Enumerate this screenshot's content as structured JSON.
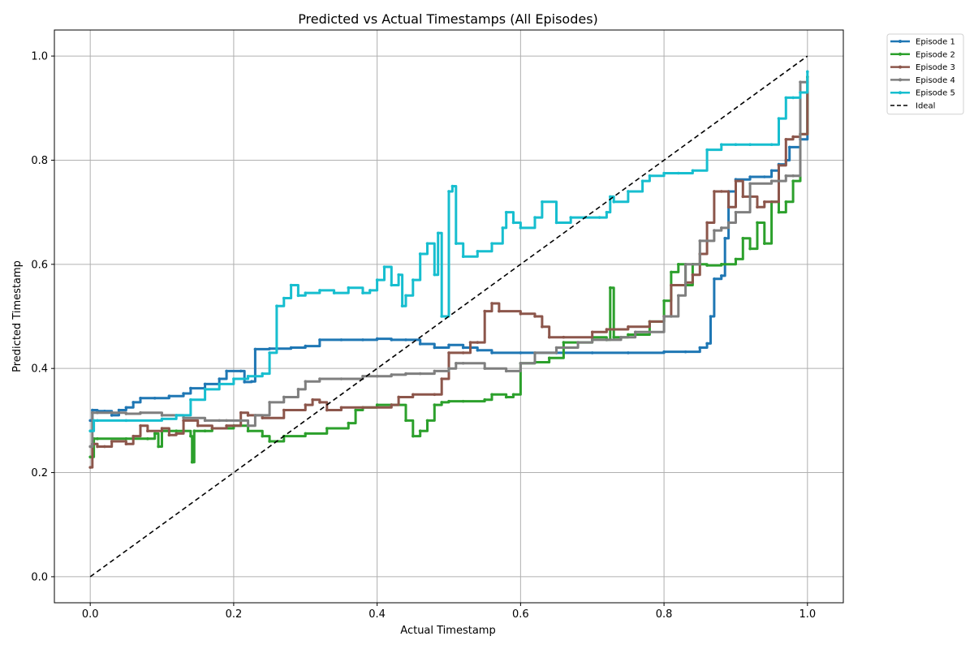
{
  "chart_data": {
    "type": "line",
    "title": "Predicted vs Actual Timestamps (All Episodes)",
    "xlabel": "Actual Timestamp",
    "ylabel": "Predicted Timestamp",
    "xlim": [
      -0.05,
      1.05
    ],
    "ylim": [
      -0.05,
      1.05
    ],
    "xticks": [
      "0.0",
      "0.2",
      "0.4",
      "0.6",
      "0.8",
      "1.0"
    ],
    "yticks": [
      "0.0",
      "0.2",
      "0.4",
      "0.6",
      "0.8",
      "1.0"
    ],
    "grid": true,
    "legend_position": "outside-top-right",
    "series": [
      {
        "name": "Episode 1",
        "color": "#1f77b4",
        "x": [
          0.0,
          0.003,
          0.01,
          0.02,
          0.03,
          0.04,
          0.05,
          0.06,
          0.07,
          0.09,
          0.11,
          0.13,
          0.14,
          0.16,
          0.18,
          0.19,
          0.21,
          0.215,
          0.225,
          0.23,
          0.25,
          0.28,
          0.3,
          0.32,
          0.35,
          0.38,
          0.4,
          0.42,
          0.44,
          0.46,
          0.48,
          0.5,
          0.52,
          0.54,
          0.56,
          0.6,
          0.65,
          0.7,
          0.75,
          0.8,
          0.83,
          0.85,
          0.86,
          0.865,
          0.87,
          0.88,
          0.885,
          0.89,
          0.9,
          0.92,
          0.94,
          0.95,
          0.96,
          0.97,
          0.975,
          0.99,
          1.0
        ],
        "y": [
          0.3,
          0.32,
          0.318,
          0.318,
          0.31,
          0.32,
          0.325,
          0.335,
          0.343,
          0.343,
          0.347,
          0.352,
          0.362,
          0.37,
          0.38,
          0.395,
          0.395,
          0.374,
          0.375,
          0.437,
          0.438,
          0.44,
          0.443,
          0.455,
          0.455,
          0.455,
          0.457,
          0.455,
          0.455,
          0.447,
          0.44,
          0.445,
          0.44,
          0.435,
          0.43,
          0.43,
          0.43,
          0.43,
          0.43,
          0.432,
          0.432,
          0.44,
          0.448,
          0.5,
          0.572,
          0.578,
          0.65,
          0.74,
          0.763,
          0.768,
          0.768,
          0.78,
          0.792,
          0.8,
          0.825,
          0.84,
          0.96
        ]
      },
      {
        "name": "Episode 2",
        "color": "#2ca02c",
        "x": [
          0.0,
          0.005,
          0.01,
          0.05,
          0.08,
          0.09,
          0.095,
          0.1,
          0.12,
          0.14,
          0.142,
          0.145,
          0.16,
          0.17,
          0.2,
          0.22,
          0.24,
          0.25,
          0.27,
          0.3,
          0.33,
          0.36,
          0.37,
          0.38,
          0.4,
          0.42,
          0.44,
          0.45,
          0.46,
          0.47,
          0.48,
          0.49,
          0.5,
          0.52,
          0.55,
          0.56,
          0.58,
          0.59,
          0.6,
          0.62,
          0.64,
          0.66,
          0.7,
          0.72,
          0.725,
          0.73,
          0.75,
          0.78,
          0.8,
          0.81,
          0.82,
          0.83,
          0.84,
          0.85,
          0.86,
          0.88,
          0.9,
          0.91,
          0.92,
          0.93,
          0.94,
          0.95,
          0.96,
          0.97,
          0.98,
          0.99,
          1.0
        ],
        "y": [
          0.23,
          0.265,
          0.265,
          0.265,
          0.265,
          0.275,
          0.25,
          0.28,
          0.28,
          0.27,
          0.22,
          0.28,
          0.28,
          0.285,
          0.29,
          0.28,
          0.27,
          0.26,
          0.27,
          0.275,
          0.285,
          0.295,
          0.32,
          0.325,
          0.33,
          0.33,
          0.3,
          0.27,
          0.28,
          0.3,
          0.33,
          0.335,
          0.337,
          0.337,
          0.34,
          0.35,
          0.345,
          0.35,
          0.41,
          0.412,
          0.42,
          0.45,
          0.46,
          0.455,
          0.555,
          0.46,
          0.465,
          0.49,
          0.53,
          0.585,
          0.6,
          0.56,
          0.6,
          0.6,
          0.598,
          0.6,
          0.61,
          0.65,
          0.63,
          0.68,
          0.64,
          0.72,
          0.7,
          0.72,
          0.76,
          0.85,
          0.96
        ]
      },
      {
        "name": "Episode 3",
        "color": "#8c564b",
        "x": [
          0.0,
          0.003,
          0.01,
          0.02,
          0.03,
          0.05,
          0.06,
          0.07,
          0.08,
          0.1,
          0.11,
          0.12,
          0.13,
          0.15,
          0.17,
          0.19,
          0.21,
          0.22,
          0.24,
          0.27,
          0.3,
          0.31,
          0.32,
          0.33,
          0.35,
          0.38,
          0.42,
          0.43,
          0.45,
          0.48,
          0.49,
          0.5,
          0.52,
          0.53,
          0.54,
          0.55,
          0.56,
          0.57,
          0.6,
          0.62,
          0.63,
          0.64,
          0.66,
          0.7,
          0.72,
          0.75,
          0.78,
          0.8,
          0.81,
          0.83,
          0.84,
          0.85,
          0.86,
          0.87,
          0.88,
          0.89,
          0.9,
          0.91,
          0.93,
          0.94,
          0.96,
          0.97,
          0.98,
          0.99,
          1.0
        ],
        "y": [
          0.21,
          0.255,
          0.25,
          0.25,
          0.26,
          0.255,
          0.27,
          0.29,
          0.28,
          0.285,
          0.272,
          0.275,
          0.3,
          0.29,
          0.285,
          0.29,
          0.315,
          0.31,
          0.305,
          0.32,
          0.33,
          0.34,
          0.335,
          0.32,
          0.325,
          0.325,
          0.33,
          0.345,
          0.35,
          0.35,
          0.38,
          0.43,
          0.43,
          0.45,
          0.45,
          0.51,
          0.525,
          0.51,
          0.505,
          0.5,
          0.48,
          0.46,
          0.46,
          0.47,
          0.475,
          0.48,
          0.49,
          0.5,
          0.56,
          0.565,
          0.58,
          0.62,
          0.68,
          0.74,
          0.74,
          0.71,
          0.76,
          0.73,
          0.71,
          0.72,
          0.79,
          0.84,
          0.845,
          0.85,
          0.93
        ]
      },
      {
        "name": "Episode 4",
        "color": "#7f7f7f",
        "x": [
          0.0,
          0.003,
          0.01,
          0.03,
          0.05,
          0.07,
          0.1,
          0.13,
          0.16,
          0.18,
          0.19,
          0.22,
          0.23,
          0.25,
          0.27,
          0.29,
          0.3,
          0.32,
          0.35,
          0.38,
          0.4,
          0.42,
          0.44,
          0.46,
          0.48,
          0.5,
          0.51,
          0.52,
          0.55,
          0.58,
          0.6,
          0.62,
          0.65,
          0.68,
          0.7,
          0.72,
          0.74,
          0.76,
          0.78,
          0.8,
          0.81,
          0.82,
          0.83,
          0.85,
          0.87,
          0.88,
          0.89,
          0.9,
          0.92,
          0.95,
          0.97,
          0.98,
          0.99,
          1.0
        ],
        "y": [
          0.25,
          0.315,
          0.315,
          0.315,
          0.313,
          0.315,
          0.31,
          0.305,
          0.3,
          0.3,
          0.3,
          0.29,
          0.31,
          0.335,
          0.345,
          0.36,
          0.375,
          0.38,
          0.38,
          0.385,
          0.385,
          0.388,
          0.39,
          0.39,
          0.395,
          0.4,
          0.41,
          0.41,
          0.4,
          0.395,
          0.41,
          0.43,
          0.44,
          0.45,
          0.455,
          0.455,
          0.46,
          0.47,
          0.47,
          0.5,
          0.5,
          0.54,
          0.6,
          0.645,
          0.665,
          0.67,
          0.68,
          0.7,
          0.755,
          0.76,
          0.77,
          0.77,
          0.95,
          0.95
        ]
      },
      {
        "name": "Episode 5",
        "color": "#17becf",
        "x": [
          0.0,
          0.005,
          0.01,
          0.05,
          0.1,
          0.12,
          0.14,
          0.16,
          0.18,
          0.2,
          0.22,
          0.24,
          0.25,
          0.26,
          0.27,
          0.28,
          0.29,
          0.3,
          0.32,
          0.34,
          0.36,
          0.38,
          0.39,
          0.4,
          0.41,
          0.42,
          0.43,
          0.435,
          0.44,
          0.45,
          0.46,
          0.47,
          0.48,
          0.485,
          0.49,
          0.5,
          0.505,
          0.51,
          0.52,
          0.54,
          0.56,
          0.575,
          0.58,
          0.59,
          0.6,
          0.62,
          0.63,
          0.65,
          0.67,
          0.69,
          0.71,
          0.72,
          0.725,
          0.73,
          0.75,
          0.77,
          0.78,
          0.8,
          0.82,
          0.84,
          0.86,
          0.88,
          0.9,
          0.92,
          0.95,
          0.96,
          0.97,
          0.98,
          0.99,
          1.0
        ],
        "y": [
          0.28,
          0.3,
          0.3,
          0.3,
          0.303,
          0.31,
          0.34,
          0.36,
          0.37,
          0.38,
          0.385,
          0.39,
          0.43,
          0.52,
          0.535,
          0.56,
          0.54,
          0.545,
          0.55,
          0.545,
          0.555,
          0.545,
          0.55,
          0.57,
          0.595,
          0.56,
          0.58,
          0.52,
          0.54,
          0.57,
          0.62,
          0.64,
          0.58,
          0.66,
          0.5,
          0.74,
          0.75,
          0.64,
          0.615,
          0.625,
          0.64,
          0.67,
          0.7,
          0.68,
          0.67,
          0.69,
          0.72,
          0.68,
          0.69,
          0.69,
          0.69,
          0.7,
          0.73,
          0.72,
          0.74,
          0.76,
          0.77,
          0.775,
          0.775,
          0.78,
          0.82,
          0.83,
          0.83,
          0.83,
          0.83,
          0.88,
          0.92,
          0.92,
          0.93,
          0.97
        ]
      },
      {
        "name": "Ideal",
        "color": "#000000",
        "dashed": true,
        "x": [
          0.0,
          1.0
        ],
        "y": [
          0.0,
          1.0
        ]
      }
    ]
  }
}
